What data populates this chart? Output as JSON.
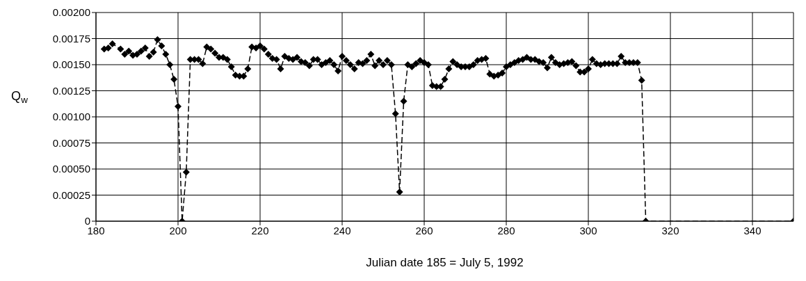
{
  "chart_data": {
    "type": "line",
    "xlabel": "Julian date   185 = July 5, 1992",
    "ylabel": "Q$_{w}$",
    "x": [
      182,
      183,
      184,
      186,
      187,
      188,
      189,
      190,
      191,
      192,
      193,
      194,
      195,
      196,
      197,
      198,
      199,
      200,
      201,
      202,
      203,
      204,
      205,
      206,
      207,
      208,
      209,
      210,
      211,
      212,
      213,
      214,
      215,
      216,
      217,
      218,
      219,
      220,
      221,
      222,
      223,
      224,
      225,
      226,
      227,
      228,
      229,
      230,
      231,
      232,
      233,
      234,
      235,
      236,
      237,
      238,
      239,
      240,
      241,
      242,
      243,
      244,
      245,
      246,
      247,
      248,
      249,
      250,
      251,
      252,
      253,
      254,
      255,
      256,
      257,
      258,
      259,
      260,
      261,
      262,
      263,
      264,
      265,
      266,
      267,
      268,
      269,
      270,
      271,
      272,
      273,
      274,
      275,
      276,
      277,
      278,
      279,
      280,
      281,
      282,
      283,
      284,
      285,
      286,
      287,
      288,
      289,
      290,
      291,
      292,
      293,
      294,
      295,
      296,
      297,
      298,
      299,
      300,
      301,
      302,
      303,
      304,
      305,
      306,
      307,
      308,
      309,
      310,
      311,
      312,
      313,
      314,
      350
    ],
    "series": [
      {
        "color": "#000000",
        "values": [
          0.00165,
          0.00166,
          0.0017,
          0.00165,
          0.0016,
          0.00163,
          0.00159,
          0.0016,
          0.00163,
          0.00166,
          0.00158,
          0.00162,
          0.00174,
          0.00168,
          0.0016,
          0.0015,
          0.00136,
          0.0011,
          0,
          0.00047,
          0.00155,
          0.00155,
          0.00155,
          0.00151,
          0.00167,
          0.00165,
          0.00161,
          0.00157,
          0.00157,
          0.00155,
          0.00148,
          0.0014,
          0.00139,
          0.00139,
          0.00146,
          0.00167,
          0.00166,
          0.00168,
          0.00165,
          0.0016,
          0.00156,
          0.00155,
          0.00146,
          0.00158,
          0.00156,
          0.00155,
          0.00157,
          0.00153,
          0.00152,
          0.00149,
          0.00155,
          0.00155,
          0.0015,
          0.00152,
          0.00154,
          0.0015,
          0.00144,
          0.00158,
          0.00154,
          0.0015,
          0.00146,
          0.00152,
          0.00151,
          0.00154,
          0.0016,
          0.00149,
          0.00154,
          0.0015,
          0.00154,
          0.0015,
          0.00103,
          0.00028,
          0.00115,
          0.0015,
          0.00148,
          0.00151,
          0.00154,
          0.00152,
          0.0015,
          0.0013,
          0.00129,
          0.00129,
          0.00136,
          0.00146,
          0.00153,
          0.0015,
          0.00148,
          0.00148,
          0.00148,
          0.0015,
          0.00154,
          0.00155,
          0.00156,
          0.00141,
          0.00139,
          0.0014,
          0.00142,
          0.00148,
          0.0015,
          0.00152,
          0.00154,
          0.00155,
          0.00157,
          0.00155,
          0.00155,
          0.00153,
          0.00152,
          0.00147,
          0.00157,
          0.00152,
          0.0015,
          0.00151,
          0.00152,
          0.00153,
          0.00149,
          0.00143,
          0.00143,
          0.00146,
          0.00155,
          0.00151,
          0.0015,
          0.00151,
          0.00151,
          0.00151,
          0.00151,
          0.00158,
          0.00152,
          0.00152,
          0.00152,
          0.00152,
          0.00135,
          0,
          0
        ]
      }
    ],
    "xlim": [
      180,
      350
    ],
    "xticks": [
      180,
      200,
      220,
      240,
      260,
      280,
      300,
      320,
      340
    ],
    "ylim": [
      0,
      0.002
    ],
    "yticks": [
      0,
      0.00025,
      {
        "value": 0.0005,
        "label": "0.00050"
      },
      0.00075,
      {
        "value": 0.001,
        "label": "0.00100"
      },
      0.00125,
      {
        "value": 0.0015,
        "label": "0.00150"
      },
      0.00175,
      {
        "value": 0.002,
        "label": "0.00200"
      }
    ],
    "grid": true,
    "marker": "diamond",
    "line_style": "dashed"
  }
}
